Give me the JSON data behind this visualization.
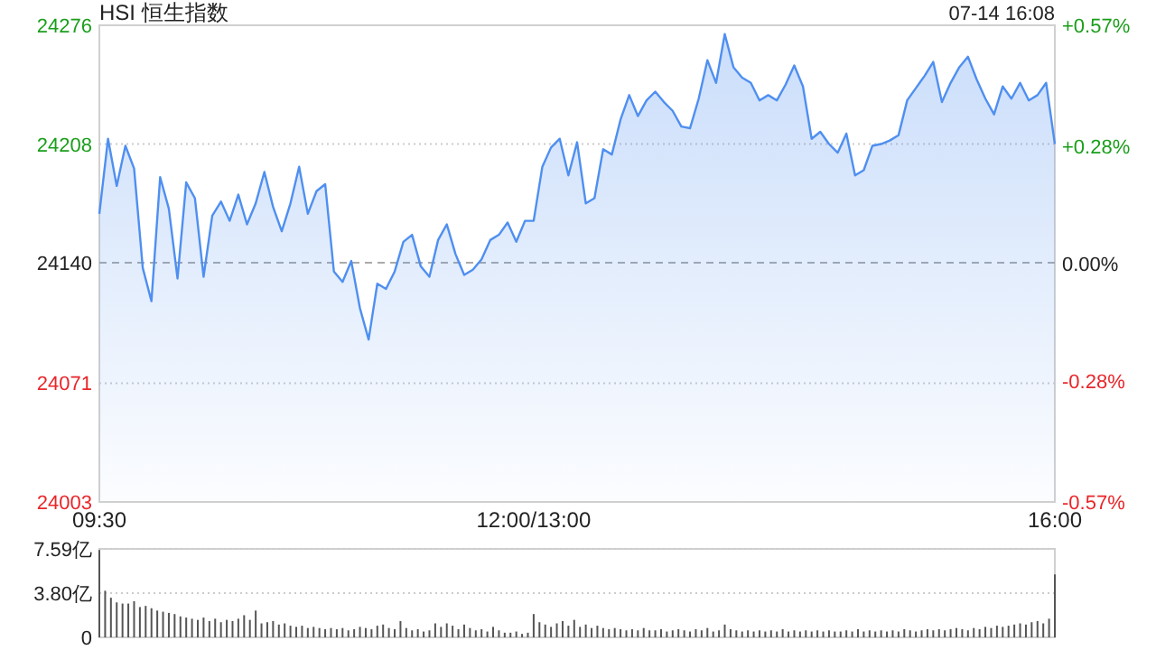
{
  "chart_data": [
    {
      "type": "area",
      "title": "HSI 恒生指数",
      "annotations": [
        "07-14 16:08"
      ],
      "categories": [
        "09:30",
        null,
        null,
        null,
        null,
        null,
        null,
        null,
        null,
        null,
        null,
        null,
        null,
        null,
        null,
        null,
        null,
        null,
        null,
        null,
        null,
        null,
        null,
        null,
        null,
        null,
        null,
        null,
        null,
        null,
        null,
        null,
        null,
        null,
        null,
        null,
        null,
        null,
        null,
        null,
        null,
        null,
        null,
        null,
        null,
        null,
        null,
        null,
        null,
        null,
        "12:00/13:00",
        null,
        null,
        null,
        null,
        null,
        null,
        null,
        null,
        null,
        null,
        null,
        null,
        null,
        null,
        null,
        null,
        null,
        null,
        null,
        null,
        null,
        null,
        null,
        null,
        null,
        null,
        null,
        null,
        null,
        null,
        null,
        null,
        null,
        null,
        null,
        null,
        null,
        null,
        null,
        null,
        null,
        null,
        null,
        null,
        null,
        null,
        null,
        null,
        null,
        null,
        null,
        null,
        null,
        null,
        null,
        null,
        null,
        null,
        null,
        "16:00"
      ],
      "ylim": [
        24003,
        24276
      ],
      "yticks": [
        24003,
        24071,
        24140,
        24208,
        24276
      ],
      "y2lim": [
        -0.57,
        0.57
      ],
      "y2ticks": [
        {
          "value": -0.57,
          "label": "-0.57%"
        },
        {
          "value": -0.28,
          "label": "-0.28%"
        },
        {
          "value": 0,
          "label": "0.00%"
        },
        {
          "value": 0.28,
          "label": "+0.28%"
        },
        {
          "value": 0.57,
          "label": "+0.57%"
        }
      ],
      "grid": "y",
      "ref_lines": [
        {
          "axis": "y",
          "value": 24140,
          "color": "#aaaaaa",
          "line_style": "dashed"
        }
      ],
      "series": [
        {
          "color": "#4f8ff0",
          "values": [
            24168,
            24211,
            24184,
            24207,
            24194,
            24137,
            24118,
            24189,
            24171,
            24131,
            24186,
            24177,
            24132,
            24167,
            24175,
            24164,
            24179,
            24162,
            24174,
            24192,
            24172,
            24158,
            24174,
            24195,
            24168,
            24181,
            24185,
            24135,
            24129,
            24141,
            24114,
            24096,
            24128,
            24125,
            24135,
            24152,
            24156,
            24138,
            24132,
            24153,
            24162,
            24145,
            24133,
            24136,
            24142,
            24153,
            24156,
            24163,
            24152,
            24164,
            24164,
            24195,
            24206,
            24211,
            24190,
            24209,
            24174,
            24177,
            24205,
            24202,
            24222,
            24236,
            24224,
            24233,
            24238,
            24232,
            24227,
            24218,
            24217,
            24234,
            24256,
            24243,
            24271,
            24252,
            24246,
            24243,
            24233,
            24236,
            24233,
            24242,
            24253,
            24241,
            24211,
            24215,
            24208,
            24203,
            24214,
            24190,
            24193,
            24207,
            24208,
            24210,
            24213,
            24233,
            24240,
            24247,
            24255,
            24232,
            24243,
            24252,
            24258,
            24245,
            24234,
            24225,
            24241,
            24234,
            24243,
            24233,
            24236,
            24243,
            24208
          ]
        }
      ]
    },
    {
      "type": "bar",
      "ylim": [
        0,
        7.59
      ],
      "yticks": [
        {
          "value": 7.59,
          "label": "7.59亿"
        },
        {
          "value": 3.8,
          "label": "3.80亿"
        },
        0
      ],
      "grid": "y",
      "tick_labels": "y",
      "categories": [
        null,
        null,
        null,
        null,
        null,
        null,
        null,
        null,
        null,
        null,
        null,
        null,
        null,
        null,
        null,
        null,
        null,
        null,
        null,
        null,
        null,
        null,
        null,
        null,
        null,
        null,
        null,
        null,
        null,
        null,
        null,
        null,
        null,
        null,
        null,
        null,
        null,
        null,
        null,
        null,
        null,
        null,
        null,
        null,
        null,
        null,
        null,
        null,
        null,
        null,
        null,
        null,
        null,
        null,
        null,
        null,
        null,
        null,
        null,
        null,
        null,
        null,
        null,
        null,
        null,
        null,
        null,
        null,
        null,
        null,
        null,
        null,
        null,
        null,
        null,
        null,
        null,
        null,
        null,
        null,
        null,
        null,
        null,
        null,
        null,
        null,
        null,
        null,
        null,
        null,
        null,
        null,
        null,
        null,
        null,
        null,
        null,
        null,
        null,
        null,
        null,
        null,
        null,
        null,
        null,
        null,
        null,
        null,
        null,
        null,
        null,
        null,
        null,
        null,
        null,
        null,
        null,
        null,
        null,
        null,
        null,
        null,
        null,
        null,
        null,
        null,
        null,
        null,
        null,
        null,
        null,
        null,
        null,
        null,
        null,
        null,
        null,
        null,
        null,
        null,
        null,
        null,
        null,
        null,
        null,
        null,
        null,
        null,
        null,
        null,
        null,
        null,
        null,
        null,
        null,
        null,
        null,
        null,
        null,
        null,
        null,
        null,
        null,
        null,
        null,
        null
      ],
      "series": [
        {
          "color": "#555555",
          "values": [
            7.5,
            4.0,
            3.4,
            3.0,
            2.9,
            2.9,
            3.1,
            2.6,
            2.7,
            2.5,
            2.3,
            2.2,
            2.1,
            2.0,
            1.8,
            1.7,
            1.6,
            1.5,
            1.7,
            1.4,
            1.6,
            1.3,
            1.5,
            1.4,
            1.6,
            1.9,
            1.5,
            2.3,
            1.2,
            1.3,
            1.4,
            1.1,
            1.2,
            1.0,
            0.9,
            1.0,
            0.8,
            0.9,
            0.8,
            0.7,
            0.8,
            0.7,
            0.8,
            0.6,
            0.7,
            0.9,
            0.8,
            0.7,
            1.0,
            1.1,
            0.8,
            0.7,
            1.4,
            0.8,
            0.6,
            0.7,
            0.5,
            0.6,
            1.2,
            0.9,
            1.2,
            1.0,
            0.7,
            1.1,
            0.8,
            0.6,
            0.7,
            0.5,
            0.9,
            0.6,
            0.4,
            0.4,
            0.5,
            0.3,
            0.4,
            2.0,
            1.3,
            1.1,
            0.9,
            1.2,
            1.4,
            1.0,
            1.5,
            0.9,
            1.1,
            0.8,
            1.0,
            0.8,
            0.7,
            0.8,
            0.7,
            0.6,
            0.7,
            0.6,
            0.8,
            0.6,
            0.6,
            0.7,
            0.5,
            0.6,
            0.7,
            0.6,
            0.5,
            0.7,
            0.6,
            0.8,
            0.5,
            0.6,
            1.1,
            0.7,
            0.6,
            0.5,
            0.6,
            0.5,
            0.6,
            0.5,
            0.6,
            0.5,
            0.7,
            0.5,
            0.6,
            0.5,
            0.6,
            0.5,
            0.6,
            0.5,
            0.6,
            0.5,
            0.5,
            0.6,
            0.5,
            0.7,
            0.5,
            0.6,
            0.5,
            0.6,
            0.5,
            0.6,
            0.5,
            0.7,
            0.6,
            0.5,
            0.6,
            0.7,
            0.6,
            0.7,
            0.6,
            0.7,
            0.8,
            0.7,
            0.6,
            0.8,
            0.7,
            0.9,
            0.8,
            1.0,
            0.9,
            1.0,
            1.1,
            1.2,
            1.1,
            1.3,
            1.4,
            1.2,
            1.6,
            5.4
          ]
        }
      ]
    }
  ]
}
